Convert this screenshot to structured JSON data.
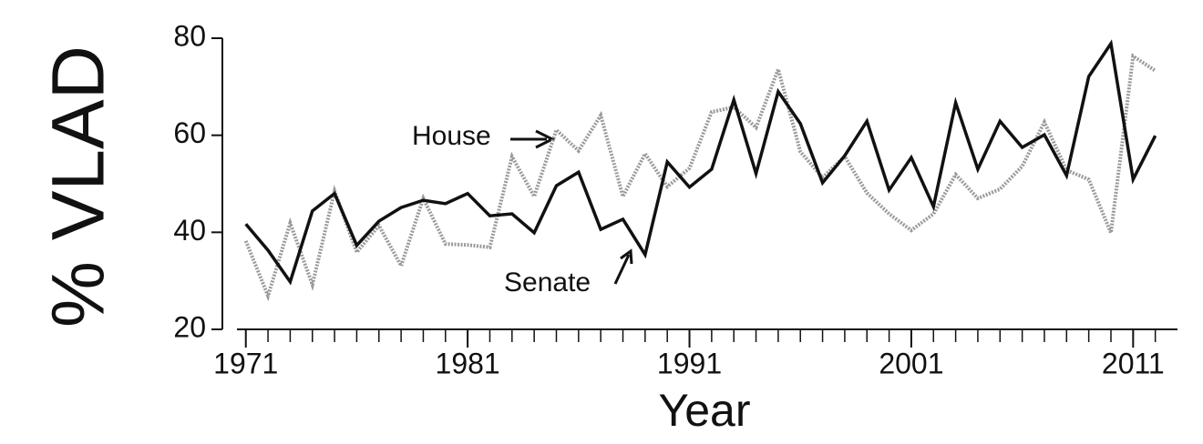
{
  "chart_data": {
    "type": "line",
    "x_label": "Year",
    "y_label": "% VLAD",
    "x": [
      1971,
      1972,
      1973,
      1974,
      1975,
      1976,
      1977,
      1978,
      1979,
      1980,
      1981,
      1982,
      1983,
      1984,
      1985,
      1986,
      1987,
      1988,
      1989,
      1990,
      1991,
      1992,
      1993,
      1994,
      1995,
      1996,
      1997,
      1998,
      1999,
      2000,
      2001,
      2002,
      2003,
      2004,
      2005,
      2006,
      2007,
      2008,
      2009,
      2010,
      2011,
      2012
    ],
    "series": [
      {
        "name": "House",
        "color": "#9a9a9a",
        "values": [
          38.2,
          26.9,
          41.9,
          29.2,
          48.5,
          35.9,
          41.4,
          33.1,
          47,
          37.6,
          37.4,
          36.9,
          55.6,
          47.4,
          61.1,
          56.8,
          64.1,
          47.4,
          56.2,
          49.4,
          53.2,
          64.8,
          65.8,
          61.6,
          73.6,
          56.6,
          51.3,
          55.6,
          48.1,
          43.8,
          40.4,
          43.8,
          51.9,
          47,
          48.9,
          53.6,
          62.7,
          52.8,
          50.9,
          39.9,
          76.3,
          73.3
        ]
      },
      {
        "name": "Senate",
        "color": "#111111",
        "values": [
          41.7,
          36.3,
          29.8,
          44.4,
          48,
          37.3,
          42.3,
          45.1,
          46.6,
          45.9,
          48,
          43.4,
          43.8,
          39.9,
          49.6,
          52.4,
          40.6,
          42.7,
          35.4,
          54.5,
          49.3,
          53,
          67.3,
          52.1,
          69,
          62.4,
          50.2,
          55.8,
          62.9,
          48.7,
          55.4,
          45.3,
          66.7,
          53,
          62.9,
          57.5,
          60.1,
          51.7,
          72.1,
          78.9,
          50.9,
          59.9
        ]
      }
    ],
    "xlim": [
      1970.6,
      2013
    ],
    "xticks": [
      1971,
      1981,
      1991,
      2001,
      2011
    ],
    "ylim": [
      20,
      80
    ],
    "yticks": [
      20,
      40,
      60,
      80
    ]
  }
}
